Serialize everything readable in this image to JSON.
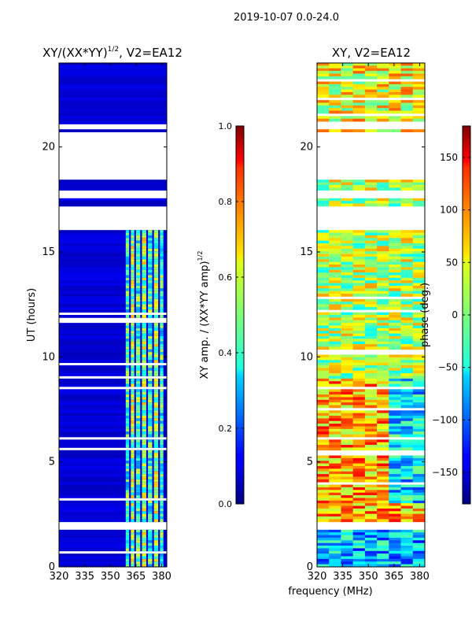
{
  "figure_title": "2019-10-07 0.0-24.0",
  "xlabel_shared": "frequency (MHz)",
  "chart_data": [
    {
      "type": "heatmap",
      "title": "XY/(XX*YY)^{1/2}, V2=EA12",
      "title_main": "XY/(XX*YY)",
      "title_sup": "1/2",
      "title_tail": ", V2=EA12",
      "xlabel": "",
      "ylabel": "UT (hours)",
      "xlim": [
        320,
        383
      ],
      "ylim": [
        0,
        24
      ],
      "xticks": [
        320,
        335,
        350,
        365,
        380
      ],
      "yticks": [
        0,
        5,
        10,
        15,
        20
      ],
      "colorbar": {
        "label": "XY amp. / (XX*YY amp)^{1/2}",
        "label_main": "XY amp. / (XX*YY amp)",
        "label_sup": "1/2",
        "range": [
          0.0,
          1.0
        ],
        "ticks": [
          0.0,
          0.2,
          0.4,
          0.6,
          0.8,
          1.0
        ],
        "tick_labels": [
          "0.0",
          "0.2",
          "0.4",
          "0.6",
          "0.8",
          "1.0"
        ]
      }
    },
    {
      "type": "heatmap",
      "title": "XY, V2=EA12",
      "xlabel": "frequency (MHz)",
      "ylabel": "",
      "xlim": [
        320,
        383
      ],
      "ylim": [
        0,
        24
      ],
      "xticks": [
        320,
        335,
        350,
        365,
        380
      ],
      "yticks": [
        0,
        5,
        10,
        15,
        20
      ],
      "colorbar": {
        "label": "phase (deg.)",
        "range": [
          -180,
          180
        ],
        "ticks": [
          -150,
          -100,
          -50,
          0,
          50,
          100,
          150
        ],
        "tick_labels": [
          "−150",
          "−100",
          "−50",
          "0",
          "50",
          "100",
          "150"
        ]
      }
    }
  ],
  "data_gaps_hours": [
    [
      1.8,
      2.2
    ],
    [
      16.0,
      17.2
    ],
    [
      17.5,
      18.0
    ],
    [
      18.4,
      20.7
    ],
    [
      20.9,
      21.1
    ]
  ]
}
